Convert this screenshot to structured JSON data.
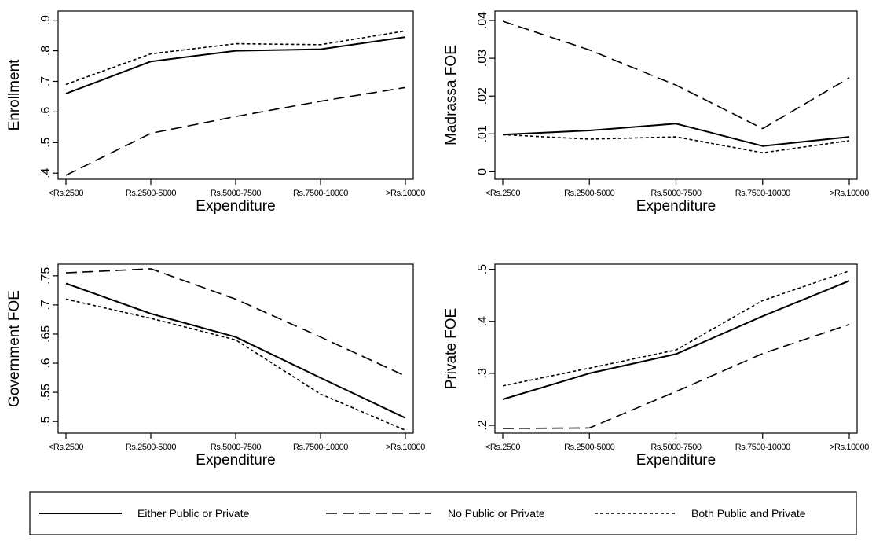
{
  "series_styles": {
    "either": {
      "color": "#000000",
      "dash": "",
      "width": 2
    },
    "nopublic": {
      "color": "#000000",
      "dash": "14 7",
      "width": 1.6
    },
    "both": {
      "color": "#000000",
      "dash": "4 3",
      "width": 1.6
    }
  },
  "chart_data": [
    {
      "type": "line",
      "xlabel": "Expenditure",
      "ylabel": "Enrollment",
      "categories": [
        "<Rs.2500",
        "Rs.2500-5000",
        "Rs.5000-7500",
        "Rs.7500-10000",
        ">Rs.10000"
      ],
      "ylim": [
        0.38,
        0.93
      ],
      "yticks": [
        0.4,
        0.5,
        0.6,
        0.7,
        0.8,
        0.9
      ],
      "ytick_labels": [
        ".4",
        ".5",
        ".6",
        ".7",
        ".8",
        ".9"
      ],
      "grid": false,
      "series": [
        {
          "key": "either",
          "values": [
            0.66,
            0.765,
            0.8,
            0.805,
            0.845
          ]
        },
        {
          "key": "nopublic",
          "values": [
            0.393,
            0.53,
            0.585,
            0.635,
            0.68
          ]
        },
        {
          "key": "both",
          "values": [
            0.69,
            0.79,
            0.823,
            0.82,
            0.865
          ]
        }
      ]
    },
    {
      "type": "line",
      "xlabel": "Expenditure",
      "ylabel": "Madrassa FOE",
      "categories": [
        "<Rs.2500",
        "Rs.2500-5000",
        "Rs.5000-7500",
        "Rs.7500-10000",
        ">Rs.10000"
      ],
      "ylim": [
        -0.002,
        0.0425
      ],
      "yticks": [
        0,
        0.01,
        0.02,
        0.03,
        0.04
      ],
      "ytick_labels": [
        "0",
        ".01",
        ".02",
        ".03",
        ".04"
      ],
      "grid": false,
      "series": [
        {
          "key": "either",
          "values": [
            0.0098,
            0.0109,
            0.0127,
            0.0068,
            0.0092
          ]
        },
        {
          "key": "nopublic",
          "values": [
            0.0398,
            0.0322,
            0.0229,
            0.0114,
            0.0248
          ]
        },
        {
          "key": "both",
          "values": [
            0.0098,
            0.0086,
            0.0092,
            0.005,
            0.0082
          ]
        }
      ]
    },
    {
      "type": "line",
      "xlabel": "Expenditure",
      "ylabel": "Government FOE",
      "categories": [
        "<Rs.2500",
        "Rs.2500-5000",
        "Rs.5000-7500",
        "Rs.7500-10000",
        ">Rs.10000"
      ],
      "ylim": [
        0.48,
        0.77
      ],
      "yticks": [
        0.5,
        0.55,
        0.6,
        0.65,
        0.7,
        0.75
      ],
      "ytick_labels": [
        ".5",
        ".55",
        ".6",
        ".65",
        ".7",
        ".75"
      ],
      "grid": false,
      "series": [
        {
          "key": "either",
          "values": [
            0.737,
            0.685,
            0.645,
            0.575,
            0.506
          ]
        },
        {
          "key": "nopublic",
          "values": [
            0.755,
            0.762,
            0.71,
            0.645,
            0.578
          ]
        },
        {
          "key": "both",
          "values": [
            0.71,
            0.677,
            0.64,
            0.547,
            0.485
          ]
        }
      ]
    },
    {
      "type": "line",
      "xlabel": "Expenditure",
      "ylabel": "Private FOE",
      "categories": [
        "<Rs.2500",
        "Rs.2500-5000",
        "Rs.5000-7500",
        "Rs.7500-10000",
        ">Rs.10000"
      ],
      "ylim": [
        0.185,
        0.51
      ],
      "yticks": [
        0.2,
        0.3,
        0.4,
        0.5
      ],
      "ytick_labels": [
        ".2",
        ".3",
        ".4",
        ".5"
      ],
      "grid": false,
      "series": [
        {
          "key": "either",
          "values": [
            0.25,
            0.3,
            0.337,
            0.41,
            0.478
          ]
        },
        {
          "key": "nopublic",
          "values": [
            0.194,
            0.195,
            0.265,
            0.338,
            0.394
          ]
        },
        {
          "key": "both",
          "values": [
            0.276,
            0.31,
            0.345,
            0.44,
            0.497
          ]
        }
      ]
    }
  ],
  "legend": {
    "placement": "bottom",
    "entries": [
      {
        "key": "either",
        "label": "Either Public or Private"
      },
      {
        "key": "nopublic",
        "label": "No Public or Private"
      },
      {
        "key": "both",
        "label": "Both Public and Private"
      }
    ]
  }
}
